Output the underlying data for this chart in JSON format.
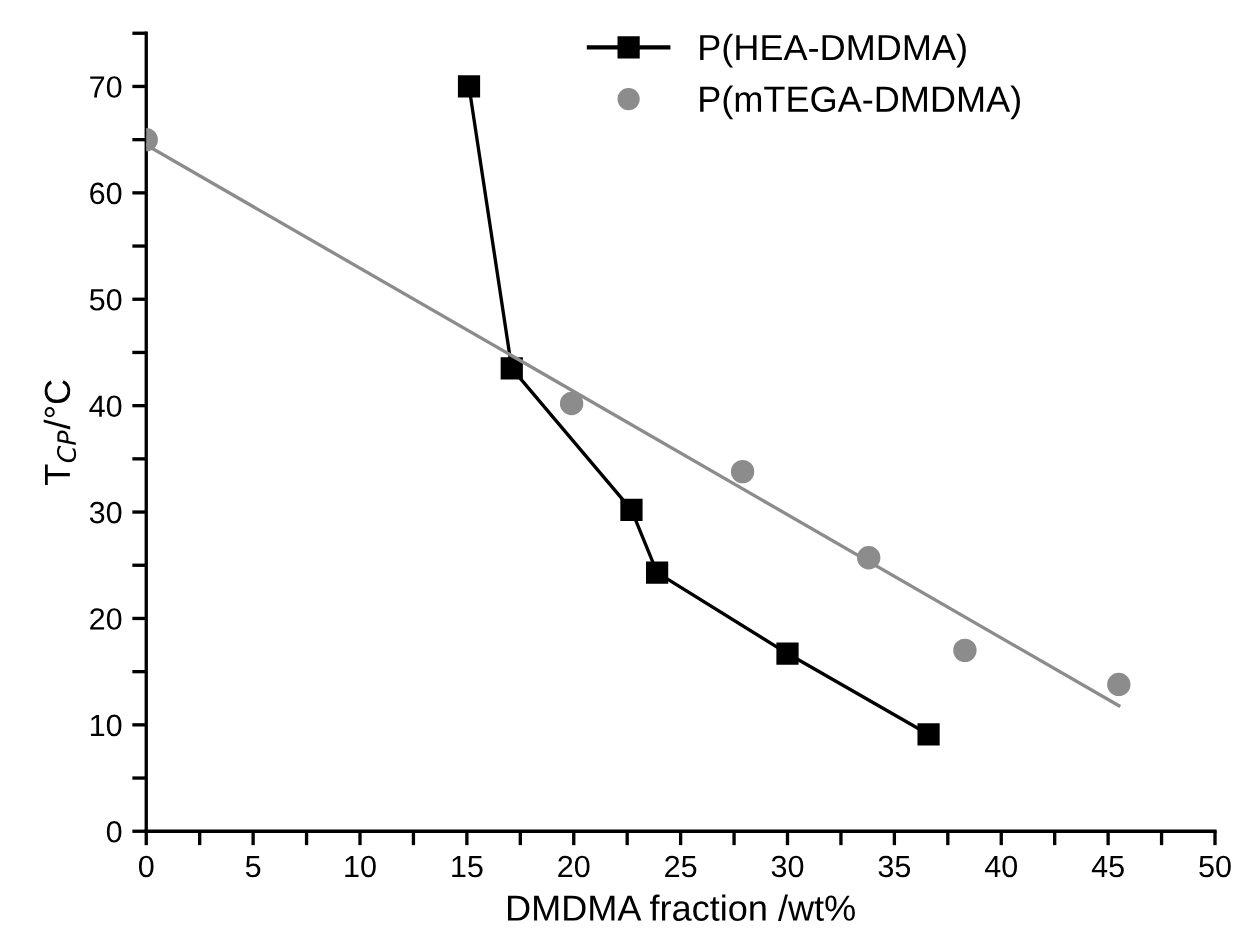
{
  "chart_data": {
    "type": "scatter",
    "xlabel": "DMDMA fraction /wt%",
    "ylabel": "T$_{CP}$/°C",
    "xlim": [
      0,
      50
    ],
    "ylim": [
      0,
      75
    ],
    "xticks": [
      0,
      {
        "value": 2.5,
        "label": null
      },
      5,
      {
        "value": 7.5,
        "label": null
      },
      10,
      {
        "value": 12.5,
        "label": null
      },
      15,
      {
        "value": 17.5,
        "label": null
      },
      20,
      {
        "value": 22.5,
        "label": null
      },
      25,
      {
        "value": 27.5,
        "label": null
      },
      30,
      {
        "value": 32.5,
        "label": null
      },
      35,
      {
        "value": 37.5,
        "label": null
      },
      40,
      {
        "value": 42.5,
        "label": null
      },
      45,
      {
        "value": 47.5,
        "label": null
      },
      50
    ],
    "yticks": [
      0,
      {
        "value": 5,
        "label": null
      },
      10,
      {
        "value": 15,
        "label": null
      },
      20,
      {
        "value": 25,
        "label": null
      },
      30,
      {
        "value": 35,
        "label": null
      },
      40,
      {
        "value": 45,
        "label": null
      },
      50,
      {
        "value": 55,
        "label": null
      },
      60,
      {
        "value": 65,
        "label": null
      },
      70,
      {
        "value": 75,
        "label": null
      }
    ],
    "grid": false,
    "legend": "top right",
    "series": [
      {
        "name": "P(HEA-DMDMA)",
        "type": "line",
        "marker": "square",
        "line_style": "solid",
        "color": "#000000",
        "x": [
          15.1,
          17.1,
          22.7,
          23.9,
          30.0,
          36.6
        ],
        "values": [
          70,
          43.5,
          30.2,
          24.3,
          16.7,
          9.1
        ]
      },
      {
        "name": "P(mTEGA-DMDMA)",
        "marker": "circle",
        "color": "#8c8c8c",
        "x": [
          0,
          19.9,
          27.9,
          33.8,
          38.3,
          45.5
        ],
        "values": [
          65,
          40.2,
          33.8,
          25.7,
          17.0,
          13.8
        ]
      },
      {
        "type": "line",
        "marker": "none",
        "line_style": "solid",
        "color": "#8c8c8c",
        "x": [
          0,
          45.5
        ],
        "values": [
          64.5,
          11.8
        ]
      }
    ]
  }
}
